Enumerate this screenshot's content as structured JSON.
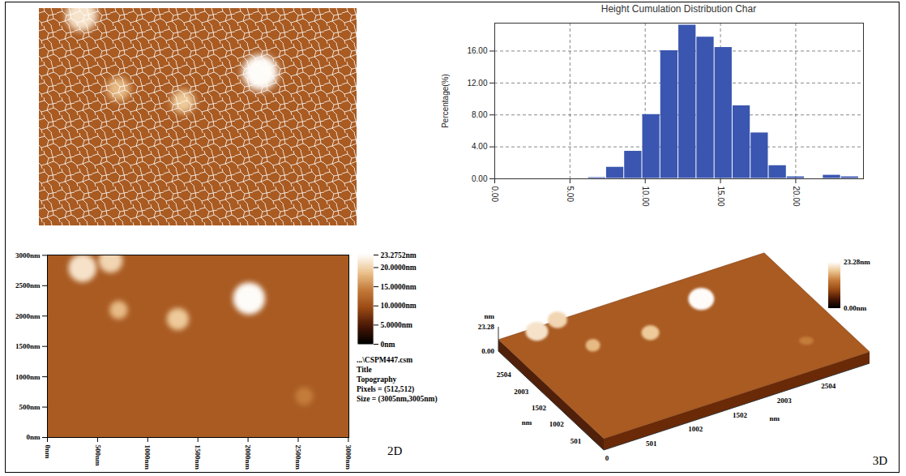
{
  "chart_data": [
    {
      "type": "grain_image",
      "xlim": [
        0,
        3005
      ],
      "ylim": [
        0,
        3005
      ],
      "zlim": [
        0,
        23.2752
      ],
      "tick_labels": false,
      "base_height": 11,
      "particles": [
        {
          "x": 400,
          "y": 2910,
          "r": 150,
          "height": 21
        },
        {
          "x": 2090,
          "y": 2120,
          "r": 170,
          "height": 23
        },
        {
          "x": 750,
          "y": 1890,
          "r": 110,
          "height": 18
        },
        {
          "x": 1360,
          "y": 1720,
          "r": 110,
          "height": 19
        }
      ]
    },
    {
      "type": "histogram",
      "title": "Height Cumulation Distribution Char",
      "y_label": "Percentage(%)",
      "bins": [
        5.0,
        6.2,
        7.4,
        8.6,
        9.8,
        11.0,
        12.2,
        13.4,
        14.6,
        15.8,
        17.0,
        18.2,
        19.4,
        20.6,
        21.8,
        23.0,
        24.2
      ],
      "counts": [
        0.1,
        0.2,
        1.5,
        3.5,
        8.1,
        16.1,
        19.3,
        17.8,
        16.5,
        9.2,
        5.8,
        1.7,
        0.3,
        0.1,
        0.5,
        0.3
      ],
      "color": "#3a56b0",
      "xlim": [
        0,
        24.5
      ],
      "ylim": [
        0,
        19.5
      ],
      "xticks": [
        {
          "value": 0,
          "label": "0.00"
        },
        {
          "value": 5,
          "label": "5.00"
        },
        {
          "value": 10,
          "label": "10.00"
        },
        {
          "value": 15,
          "label": "15.00"
        },
        {
          "value": 20,
          "label": "20.00"
        }
      ],
      "yticks": [
        {
          "value": 0,
          "label": "0.00"
        },
        {
          "value": 4,
          "label": "4.00"
        },
        {
          "value": 8,
          "label": "8.00"
        },
        {
          "value": 12,
          "label": "12.00"
        },
        {
          "value": 16,
          "label": "16.00"
        }
      ],
      "grid": true
    },
    {
      "type": "heatmap",
      "label": "2D",
      "xlim": [
        0,
        3005
      ],
      "ylim": [
        0,
        3005
      ],
      "xticks": [
        {
          "value": 0,
          "label": "0nm"
        },
        {
          "value": 500,
          "label": "500nm"
        },
        {
          "value": 1000,
          "label": "1000nm"
        },
        {
          "value": 1500,
          "label": "1500nm"
        },
        {
          "value": 2000,
          "label": "2000nm"
        },
        {
          "value": 2500,
          "label": "2500nm"
        },
        {
          "value": 3000,
          "label": "3000nm"
        }
      ],
      "yticks": [
        {
          "value": 0,
          "label": "0nm"
        },
        {
          "value": 500,
          "label": "500nm"
        },
        {
          "value": 1000,
          "label": "1000nm"
        },
        {
          "value": 1500,
          "label": "1500nm"
        },
        {
          "value": 2000,
          "label": "2000nm"
        },
        {
          "value": 2500,
          "label": "2500nm"
        },
        {
          "value": 3000,
          "label": "3000nm"
        }
      ],
      "base_height": 11,
      "particles": [
        {
          "x": 350,
          "y": 2790,
          "r": 140,
          "height": 21
        },
        {
          "x": 630,
          "y": 2910,
          "r": 120,
          "height": 20
        },
        {
          "x": 2010,
          "y": 2290,
          "r": 160,
          "height": 23
        },
        {
          "x": 710,
          "y": 2100,
          "r": 90,
          "height": 18
        },
        {
          "x": 1300,
          "y": 1950,
          "r": 110,
          "height": 19
        },
        {
          "x": 2560,
          "y": 680,
          "r": 90,
          "height": 14
        }
      ],
      "colorbar": {
        "range": [
          0,
          23.2752
        ],
        "ticks": [
          {
            "value": 23.2752,
            "label": "23.2752nm"
          },
          {
            "value": 20,
            "label": "20.0000nm"
          },
          {
            "value": 15,
            "label": "15.0000nm"
          },
          {
            "value": 10,
            "label": "10.0000nm"
          },
          {
            "value": 5,
            "label": "5.0000nm"
          },
          {
            "value": 0,
            "label": "0nm"
          }
        ]
      },
      "info": [
        "...\\CSPM447.csm",
        "Title",
        "Topography",
        "Pixels = (512,512)",
        "Size = (3005nm,3005nm)"
      ]
    },
    {
      "type": "surface",
      "label": "3D",
      "x_label": "nm",
      "y_label": "nm",
      "z_label": "nm",
      "xlim": [
        0,
        3005
      ],
      "ylim": [
        0,
        3005
      ],
      "zlim": [
        0,
        23.28
      ],
      "xticks": [
        0,
        501,
        1002,
        1502,
        2003,
        2504
      ],
      "yticks": [
        501,
        1002,
        1502,
        2003,
        2504
      ],
      "zticks": [
        {
          "value": 0,
          "label": "0.00"
        },
        {
          "value": 23.28,
          "label": "23.28"
        }
      ],
      "base_height": 11,
      "particles": [
        {
          "x": 350,
          "y": 2790,
          "r": 140,
          "height": 21
        },
        {
          "x": 630,
          "y": 2910,
          "r": 120,
          "height": 20
        },
        {
          "x": 2010,
          "y": 2290,
          "r": 160,
          "height": 23
        },
        {
          "x": 710,
          "y": 2100,
          "r": 90,
          "height": 18
        },
        {
          "x": 1300,
          "y": 1950,
          "r": 110,
          "height": 19
        },
        {
          "x": 2560,
          "y": 680,
          "r": 90,
          "height": 14
        }
      ],
      "colorbar": {
        "range": [
          0,
          23.28
        ],
        "ticks": [
          {
            "value": 23.28,
            "label": "23.28nm"
          },
          {
            "value": 0,
            "label": "0.00nm"
          }
        ]
      }
    }
  ]
}
